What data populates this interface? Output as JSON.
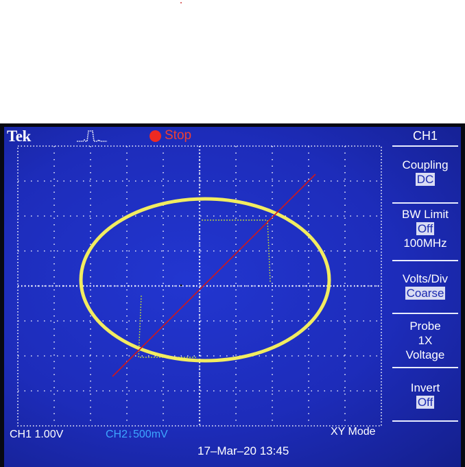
{
  "scope": {
    "brand": "Tek",
    "acquisition_state": "Stop",
    "trigger_icon": "pulse-trigger-icon"
  },
  "menu": {
    "title": "CH1",
    "items": [
      {
        "label": "Coupling",
        "value": "DC"
      },
      {
        "label": "BW Limit",
        "value": "Off",
        "extra": "100MHz"
      },
      {
        "label": "Volts/Div",
        "value": "Coarse"
      },
      {
        "label": "Probe",
        "line2": "1X",
        "line3": "Voltage"
      },
      {
        "label": "Invert",
        "value": "Off"
      }
    ]
  },
  "status": {
    "ch1_scale": "CH1  1.00V",
    "ch2_scale": "CH2↓500mV",
    "mode": "XY Mode",
    "datetime": "17–Mar–20 13:45"
  },
  "colors": {
    "screen_bg": "#1d2cba",
    "trace_ch1": "#f2ec60",
    "trace_ref": "#b8d040",
    "annotation_line": "#d0181c",
    "stop_indicator": "#ee2a22",
    "ch2_label": "#3da6ff"
  }
}
